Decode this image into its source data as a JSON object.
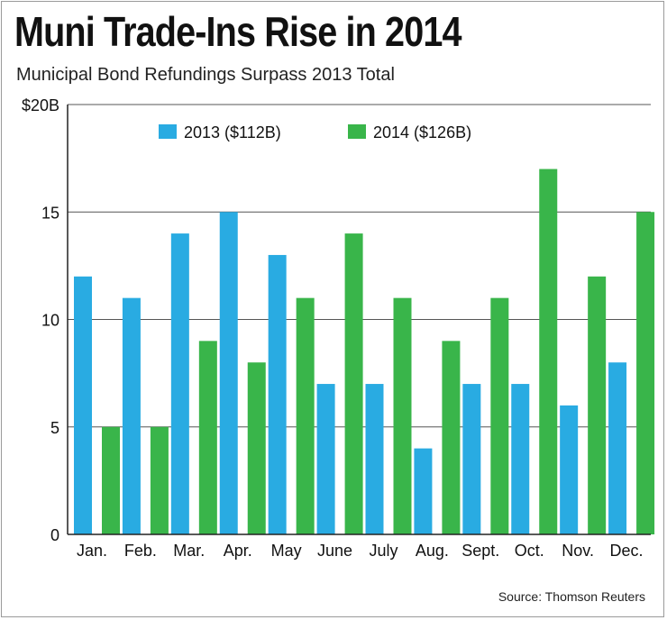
{
  "chart_data": {
    "type": "bar",
    "title": "Muni Trade-Ins Rise in 2014",
    "subtitle": "Municipal Bond Refundings Surpass 2013 Total",
    "categories": [
      "Jan.",
      "Feb.",
      "Mar.",
      "Apr.",
      "May",
      "June",
      "July",
      "Aug.",
      "Sept.",
      "Oct.",
      "Nov.",
      "Dec."
    ],
    "series": [
      {
        "name": "2013 ($112B)",
        "color": "#29abe2",
        "values": [
          12,
          11,
          14,
          15,
          13,
          7,
          7,
          4,
          7,
          7,
          6,
          8
        ]
      },
      {
        "name": "2014 ($126B)",
        "color": "#39b54a",
        "values": [
          5,
          5,
          9,
          8,
          11,
          14,
          11,
          9,
          11,
          17,
          12,
          15
        ]
      }
    ],
    "yticks": [
      0,
      5,
      10,
      15,
      20
    ],
    "ytick_labels": [
      "0",
      "5",
      "10",
      "15",
      "$20B"
    ],
    "ylim": [
      0,
      20
    ],
    "xlabel": "",
    "ylabel": "",
    "grid": true,
    "legend_position": "top-center",
    "source": "Source: Thomson Reuters"
  }
}
